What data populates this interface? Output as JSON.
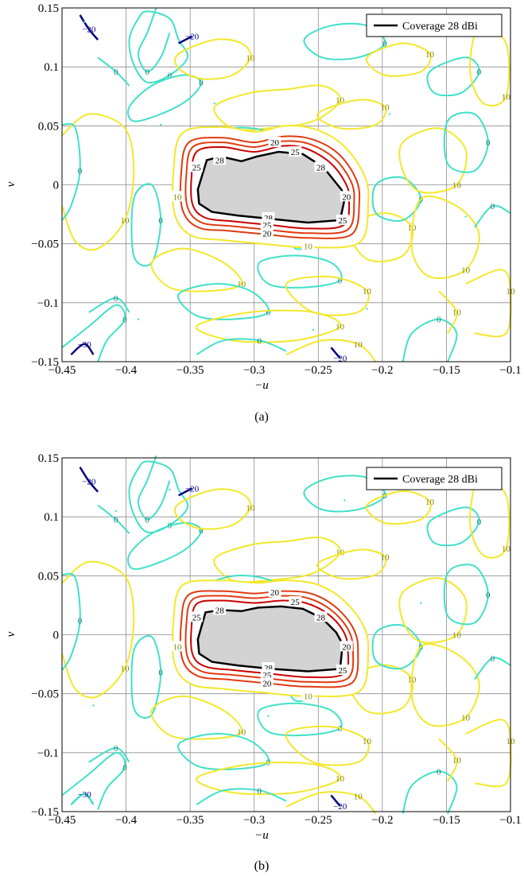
{
  "chart_data": [
    {
      "type": "contour",
      "caption": "(a)",
      "xlabel": "−u",
      "ylabel": "v",
      "xlim": [
        -0.45,
        -0.1
      ],
      "ylim": [
        -0.15,
        0.15
      ],
      "x_ticks": [
        -0.45,
        -0.4,
        -0.35,
        -0.3,
        -0.25,
        -0.2,
        -0.15,
        -0.1
      ],
      "x_tick_labels": [
        "−0.45",
        "−0.4",
        "−0.35",
        "−0.3",
        "−0.25",
        "−0.2",
        "−0.15",
        "−0.1"
      ],
      "y_ticks": [
        -0.15,
        -0.1,
        -0.05,
        0,
        0.05,
        0.1,
        0.15
      ],
      "y_tick_labels": [
        "−0.15",
        "−0.1",
        "−0.05",
        "0",
        "0.05",
        "0.1",
        "0.15"
      ],
      "grid": true,
      "legend": {
        "position": "top-right",
        "entries": [
          {
            "label": "Coverage 28 dBi",
            "color": "#000000"
          }
        ]
      },
      "contour_levels": [
        -30,
        -20,
        0,
        10,
        20,
        25,
        28
      ],
      "level_colors": {
        "-30": "#0d0d80",
        "-20": "#000080",
        "0": "#40e0c8",
        "10": "#f2e82a",
        "20": "#e03a10",
        "25": "#a00000",
        "28": "#000000"
      },
      "coverage_region": [
        [
          -0.337,
          0.021
        ],
        [
          -0.326,
          0.024
        ],
        [
          -0.31,
          0.02
        ],
        [
          -0.298,
          0.024
        ],
        [
          -0.281,
          0.028
        ],
        [
          -0.262,
          0.026
        ],
        [
          -0.246,
          0.015
        ],
        [
          -0.232,
          -0.004
        ],
        [
          -0.229,
          -0.01
        ],
        [
          -0.233,
          -0.03
        ],
        [
          -0.258,
          -0.032
        ],
        [
          -0.286,
          -0.029
        ],
        [
          -0.313,
          -0.026
        ],
        [
          -0.333,
          -0.023
        ],
        [
          -0.343,
          -0.016
        ],
        [
          -0.344,
          -0.004
        ]
      ],
      "coverage_fill": "#d3d3d3",
      "gain_contours": [
        {
          "level": 25,
          "points": [
            [
              -0.345,
              0.028
            ],
            [
              -0.325,
              0.032
            ],
            [
              -0.3,
              0.028
            ],
            [
              -0.278,
              0.033
            ],
            [
              -0.26,
              0.031
            ],
            [
              -0.241,
              0.019
            ],
            [
              -0.229,
              0.002
            ],
            [
              -0.226,
              -0.012
            ],
            [
              -0.23,
              -0.034
            ],
            [
              -0.258,
              -0.037
            ],
            [
              -0.288,
              -0.034
            ],
            [
              -0.316,
              -0.031
            ],
            [
              -0.338,
              -0.028
            ],
            [
              -0.348,
              -0.017
            ],
            [
              -0.349,
              0.006
            ]
          ]
        },
        {
          "level": 20,
          "points": [
            [
              -0.348,
              0.032
            ],
            [
              -0.325,
              0.036
            ],
            [
              -0.3,
              0.032
            ],
            [
              -0.278,
              0.037
            ],
            [
              -0.258,
              0.035
            ],
            [
              -0.238,
              0.023
            ],
            [
              -0.225,
              0.004
            ],
            [
              -0.222,
              -0.013
            ],
            [
              -0.227,
              -0.038
            ],
            [
              -0.258,
              -0.041
            ],
            [
              -0.29,
              -0.038
            ],
            [
              -0.318,
              -0.035
            ],
            [
              -0.341,
              -0.032
            ],
            [
              -0.352,
              -0.019
            ],
            [
              -0.353,
              0.008
            ]
          ]
        },
        {
          "level": 20,
          "points": [
            [
              -0.351,
              0.036
            ],
            [
              -0.325,
              0.04
            ],
            [
              -0.3,
              0.036
            ],
            [
              -0.278,
              0.041
            ],
            [
              -0.256,
              0.039
            ],
            [
              -0.235,
              0.027
            ],
            [
              -0.221,
              0.006
            ],
            [
              -0.218,
              -0.014
            ],
            [
              -0.224,
              -0.042
            ],
            [
              -0.258,
              -0.045
            ],
            [
              -0.291,
              -0.042
            ],
            [
              -0.32,
              -0.039
            ],
            [
              -0.344,
              -0.036
            ],
            [
              -0.356,
              -0.021
            ],
            [
              -0.357,
              0.01
            ]
          ]
        },
        {
          "level": 10,
          "points": [
            [
              -0.356,
              0.044
            ],
            [
              -0.325,
              0.049
            ],
            [
              -0.298,
              0.045
            ],
            [
              -0.276,
              0.05
            ],
            [
              -0.252,
              0.047
            ],
            [
              -0.23,
              0.033
            ],
            [
              -0.214,
              0.008
            ],
            [
              -0.211,
              -0.016
            ],
            [
              -0.218,
              -0.049
            ],
            [
              -0.258,
              -0.053
            ],
            [
              -0.293,
              -0.05
            ],
            [
              -0.323,
              -0.047
            ],
            [
              -0.349,
              -0.043
            ],
            [
              -0.362,
              -0.025
            ],
            [
              -0.363,
              0.012
            ]
          ]
        }
      ],
      "level_labels": [
        "28",
        "25",
        "20",
        "10",
        "0",
        "−20",
        "−30"
      ]
    },
    {
      "type": "contour",
      "caption": "(b)",
      "xlabel": "−u",
      "ylabel": "v",
      "xlim": [
        -0.45,
        -0.1
      ],
      "ylim": [
        -0.15,
        0.15
      ],
      "x_ticks": [
        -0.45,
        -0.4,
        -0.35,
        -0.3,
        -0.25,
        -0.2,
        -0.15,
        -0.1
      ],
      "x_tick_labels": [
        "−0.45",
        "−0.4",
        "−0.35",
        "−0.3",
        "−0.25",
        "−0.2",
        "−0.15",
        "−0.1"
      ],
      "y_ticks": [
        -0.15,
        -0.1,
        -0.05,
        0,
        0.05,
        0.1,
        0.15
      ],
      "y_tick_labels": [
        "−0.15",
        "−0.1",
        "−0.05",
        "0",
        "0.05",
        "0.1",
        "0.15"
      ],
      "grid": true,
      "legend": {
        "position": "top-right",
        "entries": [
          {
            "label": "Coverage 28 dBi",
            "color": "#000000"
          }
        ]
      },
      "contour_levels": [
        -20,
        0,
        10,
        20,
        25,
        28
      ],
      "level_colors": {
        "-20": "#000080",
        "0": "#40e0c8",
        "10": "#f2e82a",
        "20": "#e03a10",
        "25": "#a00000",
        "28": "#000000"
      },
      "coverage_region": [
        [
          -0.338,
          0.019
        ],
        [
          -0.326,
          0.021
        ],
        [
          -0.31,
          0.02
        ],
        [
          -0.297,
          0.023
        ],
        [
          -0.279,
          0.024
        ],
        [
          -0.262,
          0.022
        ],
        [
          -0.247,
          0.014
        ],
        [
          -0.236,
          0.002
        ],
        [
          -0.231,
          -0.008
        ],
        [
          -0.233,
          -0.029
        ],
        [
          -0.258,
          -0.031
        ],
        [
          -0.286,
          -0.029
        ],
        [
          -0.313,
          -0.026
        ],
        [
          -0.333,
          -0.023
        ],
        [
          -0.343,
          -0.016
        ],
        [
          -0.344,
          -0.004
        ]
      ],
      "coverage_fill": "#d3d3d3",
      "gain_contours": [
        {
          "level": 25,
          "points": [
            [
              -0.345,
              0.026
            ],
            [
              -0.325,
              0.029
            ],
            [
              -0.3,
              0.027
            ],
            [
              -0.278,
              0.029
            ],
            [
              -0.26,
              0.027
            ],
            [
              -0.243,
              0.018
            ],
            [
              -0.231,
              0.004
            ],
            [
              -0.227,
              -0.011
            ],
            [
              -0.23,
              -0.033
            ],
            [
              -0.258,
              -0.036
            ],
            [
              -0.288,
              -0.033
            ],
            [
              -0.316,
              -0.03
            ],
            [
              -0.338,
              -0.027
            ],
            [
              -0.348,
              -0.017
            ],
            [
              -0.349,
              0.006
            ]
          ]
        },
        {
          "level": 20,
          "points": [
            [
              -0.348,
              0.03
            ],
            [
              -0.325,
              0.033
            ],
            [
              -0.3,
              0.031
            ],
            [
              -0.278,
              0.033
            ],
            [
              -0.258,
              0.031
            ],
            [
              -0.24,
              0.021
            ],
            [
              -0.227,
              0.005
            ],
            [
              -0.223,
              -0.012
            ],
            [
              -0.227,
              -0.037
            ],
            [
              -0.258,
              -0.04
            ],
            [
              -0.29,
              -0.037
            ],
            [
              -0.318,
              -0.034
            ],
            [
              -0.341,
              -0.031
            ],
            [
              -0.352,
              -0.019
            ],
            [
              -0.353,
              0.008
            ]
          ]
        },
        {
          "level": 20,
          "points": [
            [
              -0.351,
              0.034
            ],
            [
              -0.325,
              0.037
            ],
            [
              -0.3,
              0.035
            ],
            [
              -0.278,
              0.037
            ],
            [
              -0.256,
              0.035
            ],
            [
              -0.237,
              0.024
            ],
            [
              -0.223,
              0.006
            ],
            [
              -0.219,
              -0.013
            ],
            [
              -0.224,
              -0.041
            ],
            [
              -0.258,
              -0.044
            ],
            [
              -0.291,
              -0.041
            ],
            [
              -0.32,
              -0.038
            ],
            [
              -0.344,
              -0.035
            ],
            [
              -0.356,
              -0.021
            ],
            [
              -0.357,
              0.01
            ]
          ]
        },
        {
          "level": 10,
          "points": [
            [
              -0.356,
              0.042
            ],
            [
              -0.325,
              0.046
            ],
            [
              -0.298,
              0.044
            ],
            [
              -0.276,
              0.046
            ],
            [
              -0.252,
              0.043
            ],
            [
              -0.231,
              0.03
            ],
            [
              -0.215,
              0.008
            ],
            [
              -0.211,
              -0.015
            ],
            [
              -0.218,
              -0.048
            ],
            [
              -0.258,
              -0.052
            ],
            [
              -0.293,
              -0.049
            ],
            [
              -0.323,
              -0.046
            ],
            [
              -0.349,
              -0.042
            ],
            [
              -0.362,
              -0.025
            ],
            [
              -0.363,
              0.012
            ]
          ]
        }
      ],
      "level_labels": [
        "28",
        "25",
        "20",
        "10",
        "0",
        "−20"
      ]
    }
  ]
}
